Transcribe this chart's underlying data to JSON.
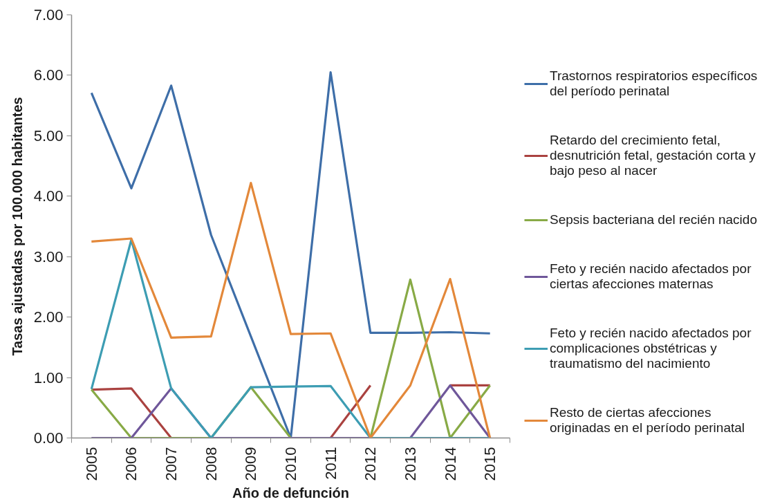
{
  "chart_data": {
    "type": "line",
    "xlabel": "Año de defunción",
    "ylabel": "Tasas ajustadas por 100.000 habitantes",
    "categories": [
      "2005",
      "2006",
      "2007",
      "2008",
      "2009",
      "2010",
      "2011",
      "2012",
      "2013",
      "2014",
      "2015"
    ],
    "ylim": [
      0,
      7
    ],
    "yticks": [
      {
        "value": 0,
        "label": "0.00"
      },
      {
        "value": 1,
        "label": "1.00"
      },
      {
        "value": 2,
        "label": "2.00"
      },
      {
        "value": 3,
        "label": "3.00"
      },
      {
        "value": 4,
        "label": "4.00"
      },
      {
        "value": 5,
        "label": "5.00"
      },
      {
        "value": 6,
        "label": "6.00"
      },
      {
        "value": 7,
        "label": "7.00"
      }
    ],
    "grid": false,
    "legend": "right",
    "series": [
      {
        "name": "Trastornos respiratorios específicos del período perinatal",
        "color": "#3e6ea8",
        "values": [
          5.71,
          4.13,
          5.83,
          3.36,
          1.68,
          0,
          6.05,
          1.74,
          1.74,
          1.75,
          1.73
        ]
      },
      {
        "name": "Retardo del crecimiento fetal, desnutrición fetal, gestación corta y bajo peso al nacer",
        "color": "#aa4240",
        "values": [
          0.8,
          0.82,
          0,
          null,
          null,
          null,
          0,
          0.87,
          null,
          0.87,
          0.87
        ]
      },
      {
        "name": "Sepsis bacteriana del recién nacido",
        "color": "#88aa46",
        "values": [
          0.8,
          0,
          0,
          0,
          0.84,
          0,
          null,
          0,
          2.62,
          0,
          0.87
        ]
      },
      {
        "name": "Feto y recién nacido afectados por ciertas afecciones maternas",
        "color": "#6f579a",
        "values": [
          0,
          0,
          0.82,
          0,
          0,
          0,
          0,
          0,
          0,
          0.87,
          0
        ]
      },
      {
        "name": "Feto y recién nacido afectados por complicaciones obstétricas y traumatismo del nacimiento",
        "color": "#3d9db3",
        "values": [
          0.81,
          3.28,
          0.82,
          0,
          0.84,
          0.85,
          0.86,
          0,
          0,
          0,
          0
        ]
      },
      {
        "name": "Resto de ciertas afecciones originadas en el período perinatal",
        "color": "#e3883a",
        "values": [
          3.25,
          3.3,
          1.66,
          1.68,
          4.22,
          1.72,
          1.73,
          0,
          0.87,
          2.63,
          0
        ]
      }
    ]
  }
}
